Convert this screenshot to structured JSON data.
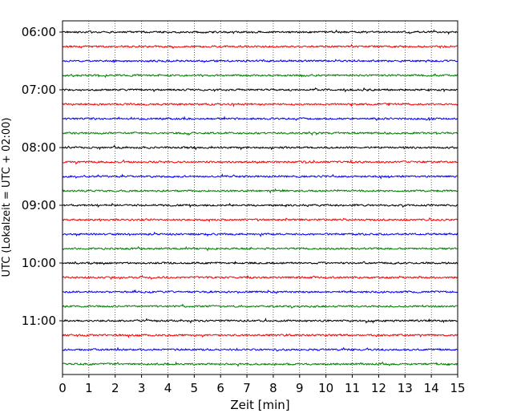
{
  "chart_data": {
    "type": "line",
    "title": "",
    "xlabel": "Zeit  [min]",
    "ylabel": "UTC (Lokalzeit = UTC + 02:00)",
    "xlim": [
      0,
      15
    ],
    "x_ticks": [
      "0",
      "1",
      "2",
      "3",
      "4",
      "5",
      "6",
      "7",
      "8",
      "9",
      "10",
      "11",
      "12",
      "13",
      "14",
      "15"
    ],
    "y_tick_labels": [
      "06:00",
      "07:00",
      "08:00",
      "09:00",
      "10:00",
      "11:00"
    ],
    "grid": "vertical dotted",
    "trace_colors": [
      "#000000",
      "#ff0000",
      "#0000ff",
      "#008000"
    ],
    "traces": [
      {
        "start": "06:00",
        "color": "#000000"
      },
      {
        "start": "06:15",
        "color": "#ff0000"
      },
      {
        "start": "06:30",
        "color": "#0000ff"
      },
      {
        "start": "06:45",
        "color": "#008000"
      },
      {
        "start": "07:00",
        "color": "#000000"
      },
      {
        "start": "07:15",
        "color": "#ff0000"
      },
      {
        "start": "07:30",
        "color": "#0000ff"
      },
      {
        "start": "07:45",
        "color": "#008000"
      },
      {
        "start": "08:00",
        "color": "#000000"
      },
      {
        "start": "08:15",
        "color": "#ff0000"
      },
      {
        "start": "08:30",
        "color": "#0000ff"
      },
      {
        "start": "08:45",
        "color": "#008000"
      },
      {
        "start": "09:00",
        "color": "#000000"
      },
      {
        "start": "09:15",
        "color": "#ff0000"
      },
      {
        "start": "09:30",
        "color": "#0000ff"
      },
      {
        "start": "09:45",
        "color": "#008000"
      },
      {
        "start": "10:00",
        "color": "#000000"
      },
      {
        "start": "10:15",
        "color": "#ff0000"
      },
      {
        "start": "10:30",
        "color": "#0000ff"
      },
      {
        "start": "10:45",
        "color": "#008000"
      },
      {
        "start": "11:00",
        "color": "#000000"
      },
      {
        "start": "11:15",
        "color": "#ff0000"
      },
      {
        "start": "11:30",
        "color": "#0000ff"
      },
      {
        "start": "11:45",
        "color": "#008000"
      }
    ]
  }
}
